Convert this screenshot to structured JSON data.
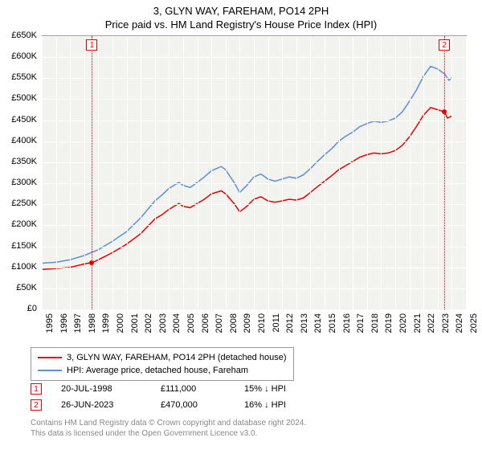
{
  "title_line1": "3, GLYN WAY, FAREHAM, PO14 2PH",
  "title_line2": "Price paid vs. HM Land Registry's House Price Index (HPI)",
  "chart": {
    "type": "line",
    "background_color": "#f2f2ef",
    "grid_color": "#ffffff",
    "axis_color": "#999999",
    "text_color": "#000000",
    "label_fontsize": 11,
    "ylim": [
      0,
      650000
    ],
    "ytick_step": 50000,
    "ytick_prefix": "£",
    "ytick_suffix": "K",
    "yticks": [
      "£0",
      "£50K",
      "£100K",
      "£150K",
      "£200K",
      "£250K",
      "£300K",
      "£350K",
      "£400K",
      "£450K",
      "£500K",
      "£550K",
      "£600K",
      "£650K"
    ],
    "xlim": [
      1995,
      2025
    ],
    "xtick_step": 1,
    "xticks": [
      "1995",
      "1996",
      "1997",
      "1998",
      "1999",
      "2000",
      "2001",
      "2002",
      "2003",
      "2004",
      "2005",
      "2006",
      "2007",
      "2008",
      "2009",
      "2010",
      "2011",
      "2012",
      "2013",
      "2014",
      "2015",
      "2016",
      "2017",
      "2018",
      "2019",
      "2020",
      "2021",
      "2022",
      "2023",
      "2024",
      "2025"
    ],
    "series": [
      {
        "name": "price_paid",
        "label": "3, GLYN WAY, FAREHAM, PO14 2PH (detached house)",
        "color": "#e60000",
        "line_width": 1.5,
        "points": [
          [
            1995.0,
            95000
          ],
          [
            1996.0,
            97000
          ],
          [
            1997.0,
            100000
          ],
          [
            1998.0,
            108000
          ],
          [
            1998.55,
            111000
          ],
          [
            1999.0,
            118000
          ],
          [
            2000.0,
            135000
          ],
          [
            2001.0,
            155000
          ],
          [
            2002.0,
            180000
          ],
          [
            2003.0,
            215000
          ],
          [
            2003.5,
            225000
          ],
          [
            2004.0,
            238000
          ],
          [
            2004.7,
            252000
          ],
          [
            2005.0,
            245000
          ],
          [
            2005.5,
            242000
          ],
          [
            2006.0,
            252000
          ],
          [
            2006.5,
            262000
          ],
          [
            2007.0,
            275000
          ],
          [
            2007.7,
            282000
          ],
          [
            2008.0,
            275000
          ],
          [
            2008.6,
            252000
          ],
          [
            2009.0,
            232000
          ],
          [
            2009.5,
            245000
          ],
          [
            2010.0,
            262000
          ],
          [
            2010.5,
            268000
          ],
          [
            2011.0,
            258000
          ],
          [
            2011.5,
            255000
          ],
          [
            2012.0,
            258000
          ],
          [
            2012.5,
            262000
          ],
          [
            2013.0,
            260000
          ],
          [
            2013.5,
            265000
          ],
          [
            2014.0,
            278000
          ],
          [
            2014.5,
            292000
          ],
          [
            2015.0,
            305000
          ],
          [
            2015.5,
            318000
          ],
          [
            2016.0,
            332000
          ],
          [
            2016.5,
            342000
          ],
          [
            2017.0,
            352000
          ],
          [
            2017.5,
            362000
          ],
          [
            2018.0,
            368000
          ],
          [
            2018.5,
            372000
          ],
          [
            2019.0,
            370000
          ],
          [
            2019.5,
            372000
          ],
          [
            2020.0,
            378000
          ],
          [
            2020.5,
            390000
          ],
          [
            2021.0,
            410000
          ],
          [
            2021.5,
            435000
          ],
          [
            2022.0,
            462000
          ],
          [
            2022.5,
            480000
          ],
          [
            2023.0,
            475000
          ],
          [
            2023.48,
            470000
          ],
          [
            2023.7,
            455000
          ],
          [
            2024.0,
            460000
          ]
        ]
      },
      {
        "name": "hpi",
        "label": "HPI: Average price, detached house, Fareham",
        "color": "#5b8fd6",
        "line_width": 1.5,
        "points": [
          [
            1995.0,
            110000
          ],
          [
            1996.0,
            112000
          ],
          [
            1997.0,
            118000
          ],
          [
            1998.0,
            128000
          ],
          [
            1999.0,
            142000
          ],
          [
            2000.0,
            162000
          ],
          [
            2001.0,
            185000
          ],
          [
            2002.0,
            218000
          ],
          [
            2003.0,
            258000
          ],
          [
            2003.5,
            272000
          ],
          [
            2004.0,
            288000
          ],
          [
            2004.7,
            302000
          ],
          [
            2005.0,
            295000
          ],
          [
            2005.5,
            290000
          ],
          [
            2006.0,
            302000
          ],
          [
            2006.5,
            315000
          ],
          [
            2007.0,
            330000
          ],
          [
            2007.7,
            340000
          ],
          [
            2008.0,
            332000
          ],
          [
            2008.6,
            302000
          ],
          [
            2009.0,
            278000
          ],
          [
            2009.5,
            295000
          ],
          [
            2010.0,
            315000
          ],
          [
            2010.5,
            322000
          ],
          [
            2011.0,
            310000
          ],
          [
            2011.5,
            305000
          ],
          [
            2012.0,
            310000
          ],
          [
            2012.5,
            315000
          ],
          [
            2013.0,
            312000
          ],
          [
            2013.5,
            320000
          ],
          [
            2014.0,
            335000
          ],
          [
            2014.5,
            352000
          ],
          [
            2015.0,
            368000
          ],
          [
            2015.5,
            382000
          ],
          [
            2016.0,
            400000
          ],
          [
            2016.5,
            412000
          ],
          [
            2017.0,
            422000
          ],
          [
            2017.5,
            435000
          ],
          [
            2018.0,
            442000
          ],
          [
            2018.5,
            448000
          ],
          [
            2019.0,
            445000
          ],
          [
            2019.5,
            448000
          ],
          [
            2020.0,
            455000
          ],
          [
            2020.5,
            470000
          ],
          [
            2021.0,
            495000
          ],
          [
            2021.5,
            522000
          ],
          [
            2022.0,
            555000
          ],
          [
            2022.5,
            578000
          ],
          [
            2023.0,
            572000
          ],
          [
            2023.5,
            560000
          ],
          [
            2023.8,
            545000
          ],
          [
            2024.0,
            552000
          ]
        ]
      }
    ],
    "markers": [
      {
        "id": "1",
        "year": 1998.55,
        "value": 111000,
        "color": "#e60000"
      },
      {
        "id": "2",
        "year": 2023.48,
        "value": 470000,
        "color": "#e60000"
      }
    ]
  },
  "legend": {
    "items": [
      {
        "color": "#e60000",
        "label": "3, GLYN WAY, FAREHAM, PO14 2PH (detached house)"
      },
      {
        "color": "#5b8fd6",
        "label": "HPI: Average price, detached house, Fareham"
      }
    ]
  },
  "transactions": [
    {
      "id": "1",
      "color": "#e60000",
      "date": "20-JUL-1998",
      "price": "£111,000",
      "diff": "15% ↓ HPI"
    },
    {
      "id": "2",
      "color": "#e60000",
      "date": "26-JUN-2023",
      "price": "£470,000",
      "diff": "16% ↓ HPI"
    }
  ],
  "footer": {
    "line1": "Contains HM Land Registry data © Crown copyright and database right 2024.",
    "line2": "This data is licensed under the Open Government Licence v3.0."
  }
}
